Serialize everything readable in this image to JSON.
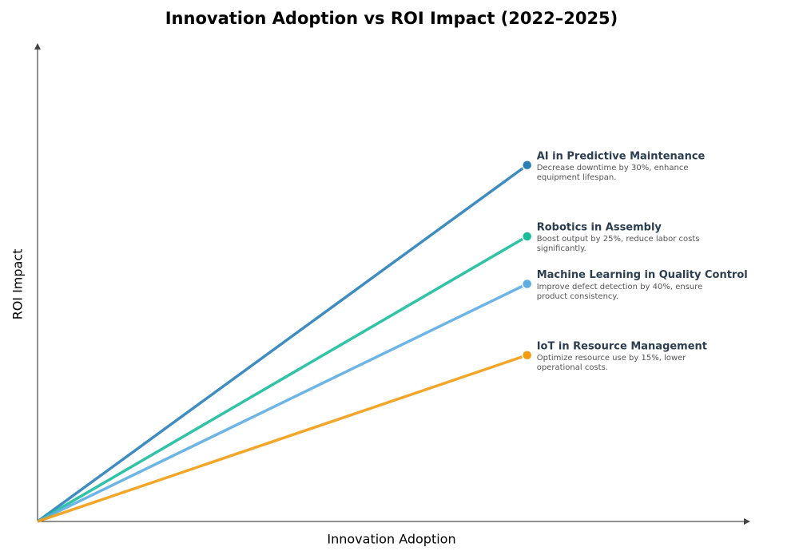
{
  "chart_data": {
    "type": "line",
    "title": "Innovation Adoption vs ROI Impact (2022–2025)",
    "x_label": "Innovation Adoption",
    "y_label": "ROI Impact",
    "x": [
      0,
      0.69
    ],
    "xlim": [
      0,
      1
    ],
    "ylim": [
      0,
      1
    ],
    "series": [
      {
        "name": "AI in Predictive Maintenance",
        "color": "#2980b9",
        "values": [
          0,
          0.75
        ],
        "description": "Decrease downtime by 30%, enhance equipment lifespan."
      },
      {
        "name": "Robotics in Assembly",
        "color": "#1abc9c",
        "values": [
          0,
          0.6
        ],
        "description": "Boost output by 25%, reduce labor costs significantly."
      },
      {
        "name": "Machine Learning in Quality Control",
        "color": "#5dade2",
        "values": [
          0,
          0.5
        ],
        "description": "Improve defect detection by 40%, ensure product consistency."
      },
      {
        "name": "IoT in Resource Management",
        "color": "#f39c12",
        "values": [
          0,
          0.35
        ],
        "description": "Optimize resource use by 15%, lower operational costs."
      }
    ]
  }
}
